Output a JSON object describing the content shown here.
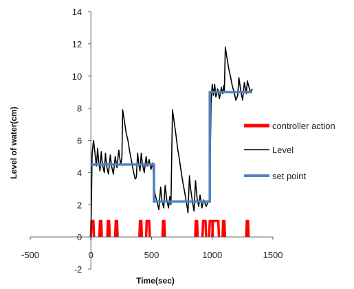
{
  "chart_data": {
    "type": "line",
    "xlabel": "Time(sec)",
    "ylabel": "Level of water(cm)",
    "xlim": [
      -500,
      1500
    ],
    "ylim": [
      -2,
      14
    ],
    "x_ticks": [
      -500,
      0,
      500,
      1000,
      1500
    ],
    "y_ticks": [
      -2,
      0,
      2,
      4,
      6,
      8,
      10,
      12,
      14
    ],
    "grid": false,
    "legend_position": "right",
    "series": [
      {
        "name": "controller action",
        "color": "#ff0000",
        "segments": [
          [
            [
              0,
              0
            ],
            [
              5,
              1
            ],
            [
              20,
              1
            ],
            [
              25,
              0
            ]
          ],
          [
            [
              70,
              0
            ],
            [
              75,
              1
            ],
            [
              85,
              1
            ],
            [
              90,
              0
            ]
          ],
          [
            [
              135,
              0
            ],
            [
              140,
              1
            ],
            [
              150,
              1
            ],
            [
              155,
              0
            ]
          ],
          [
            [
              200,
              0
            ],
            [
              205,
              1
            ],
            [
              215,
              1
            ],
            [
              220,
              0
            ]
          ],
          [
            [
              400,
              0
            ],
            [
              405,
              1
            ],
            [
              415,
              1
            ],
            [
              420,
              0
            ]
          ],
          [
            [
              455,
              0
            ],
            [
              460,
              1
            ],
            [
              480,
              1
            ],
            [
              485,
              0
            ]
          ],
          [
            [
              590,
              0
            ],
            [
              595,
              1
            ],
            [
              605,
              1
            ],
            [
              610,
              0
            ]
          ],
          [
            [
              860,
              0
            ],
            [
              865,
              1
            ],
            [
              875,
              1
            ],
            [
              880,
              0
            ]
          ],
          [
            [
              920,
              0
            ],
            [
              925,
              1
            ],
            [
              945,
              1
            ],
            [
              950,
              0
            ]
          ],
          [
            [
              975,
              0
            ],
            [
              980,
              1
            ],
            [
              1000,
              1
            ],
            [
              1005,
              0
            ]
          ],
          [
            [
              1000,
              0
            ],
            [
              1005,
              1
            ],
            [
              1050,
              1
            ],
            [
              1055,
              0
            ]
          ],
          [
            [
              1085,
              0
            ],
            [
              1090,
              1
            ],
            [
              1100,
              1
            ],
            [
              1105,
              0
            ]
          ],
          [
            [
              1280,
              0
            ],
            [
              1285,
              1
            ],
            [
              1295,
              1
            ],
            [
              1300,
              0
            ]
          ]
        ]
      },
      {
        "name": "Level",
        "color": "#000000",
        "points": [
          [
            0,
            -0.2
          ],
          [
            10,
            5.2
          ],
          [
            22,
            6.0
          ],
          [
            35,
            5.1
          ],
          [
            45,
            4.4
          ],
          [
            55,
            5.5
          ],
          [
            65,
            4.6
          ],
          [
            75,
            4.1
          ],
          [
            85,
            5.3
          ],
          [
            95,
            4.5
          ],
          [
            110,
            4.0
          ],
          [
            120,
            5.2
          ],
          [
            130,
            4.4
          ],
          [
            145,
            3.9
          ],
          [
            160,
            5.1
          ],
          [
            170,
            4.4
          ],
          [
            185,
            3.9
          ],
          [
            200,
            5.0
          ],
          [
            215,
            4.3
          ],
          [
            230,
            5.4
          ],
          [
            245,
            4.5
          ],
          [
            255,
            4.9
          ],
          [
            262,
            7.9
          ],
          [
            270,
            7.5
          ],
          [
            280,
            7.0
          ],
          [
            290,
            6.5
          ],
          [
            305,
            6.0
          ],
          [
            320,
            5.3
          ],
          [
            335,
            4.7
          ],
          [
            350,
            4.1
          ],
          [
            365,
            3.6
          ],
          [
            375,
            3.7
          ],
          [
            385,
            5.2
          ],
          [
            395,
            4.5
          ],
          [
            405,
            4.1
          ],
          [
            415,
            5.2
          ],
          [
            425,
            4.5
          ],
          [
            440,
            4.0
          ],
          [
            455,
            5.0
          ],
          [
            465,
            4.4
          ],
          [
            480,
            4.8
          ],
          [
            495,
            4.2
          ],
          [
            510,
            4.6
          ],
          [
            520,
            3.2
          ],
          [
            530,
            2.6
          ],
          [
            545,
            2.2
          ],
          [
            560,
            1.7
          ],
          [
            575,
            3.1
          ],
          [
            585,
            2.3
          ],
          [
            600,
            1.8
          ],
          [
            612,
            3.2
          ],
          [
            625,
            2.3
          ],
          [
            640,
            1.8
          ],
          [
            650,
            2.5
          ],
          [
            660,
            2.0
          ],
          [
            672,
            7.9
          ],
          [
            685,
            7.2
          ],
          [
            700,
            6.4
          ],
          [
            715,
            5.5
          ],
          [
            730,
            4.8
          ],
          [
            745,
            4.0
          ],
          [
            760,
            3.3
          ],
          [
            775,
            2.7
          ],
          [
            790,
            2.0
          ],
          [
            800,
            1.5
          ],
          [
            812,
            3.8
          ],
          [
            822,
            3.0
          ],
          [
            835,
            2.3
          ],
          [
            850,
            1.6
          ],
          [
            862,
            3.5
          ],
          [
            875,
            2.4
          ],
          [
            888,
            1.9
          ],
          [
            900,
            2.6
          ],
          [
            915,
            1.8
          ],
          [
            930,
            2.3
          ],
          [
            950,
            1.9
          ],
          [
            968,
            2.2
          ],
          [
            980,
            2.3
          ],
          [
            990,
            8.3
          ],
          [
            1000,
            9.5
          ],
          [
            1010,
            8.8
          ],
          [
            1020,
            9.5
          ],
          [
            1030,
            8.7
          ],
          [
            1045,
            9.2
          ],
          [
            1060,
            8.6
          ],
          [
            1075,
            9.3
          ],
          [
            1085,
            8.9
          ],
          [
            1095,
            9.4
          ],
          [
            1100,
            9.1
          ],
          [
            1108,
            11.8
          ],
          [
            1120,
            11.2
          ],
          [
            1135,
            10.5
          ],
          [
            1150,
            10.0
          ],
          [
            1165,
            9.4
          ],
          [
            1180,
            9.0
          ],
          [
            1195,
            8.5
          ],
          [
            1210,
            8.8
          ],
          [
            1220,
            9.9
          ],
          [
            1235,
            9.1
          ],
          [
            1250,
            8.5
          ],
          [
            1265,
            9.6
          ],
          [
            1280,
            8.9
          ],
          [
            1290,
            9.7
          ],
          [
            1300,
            9.4
          ],
          [
            1315,
            9.0
          ],
          [
            1330,
            9.2
          ]
        ]
      },
      {
        "name": "set point",
        "color": "#4f81bd",
        "points": [
          [
            0,
            4.5
          ],
          [
            520,
            4.5
          ],
          [
            520,
            2.2
          ],
          [
            980,
            2.2
          ],
          [
            980,
            9.0
          ],
          [
            1330,
            9.0
          ]
        ]
      }
    ]
  }
}
